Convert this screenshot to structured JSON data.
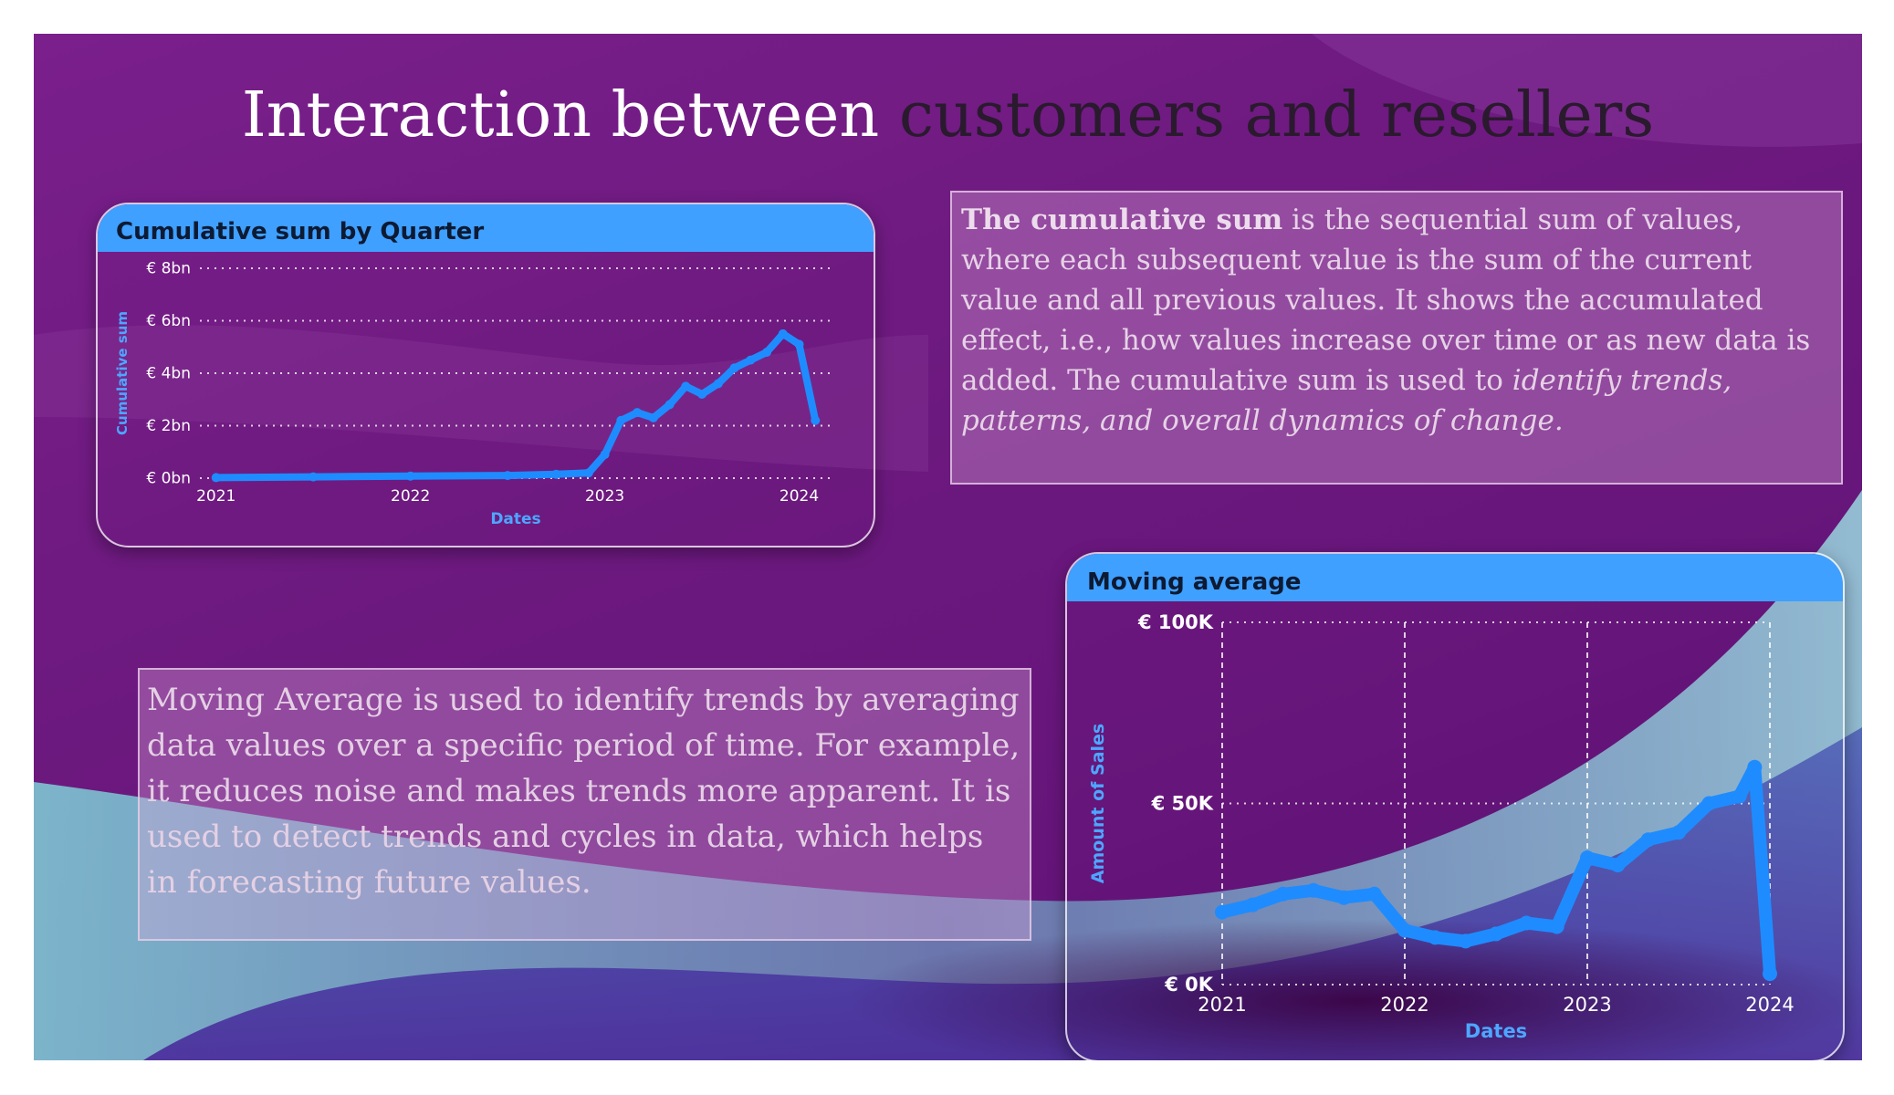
{
  "title": {
    "part1": "Interaction between",
    "part2": "customers and resellers"
  },
  "colors": {
    "background": "#6e1a80",
    "header": "#3fa0ff",
    "series": "#1e8cff",
    "title_dark": "#2a1a2e",
    "axis_title": "#4da6ff"
  },
  "cumulative_text": {
    "bold": "The cumulative sum",
    "body": "is the sequential sum of values, where each subsequent value is the sum of the current value and all previous values. It shows the accumulated effect, i.e., how values increase over time or as new data is added. The cumulative sum is used to",
    "italic": "identify trends, patterns, and overall dynamics of change."
  },
  "moving_text": "Moving Average is used to identify trends by averaging data values over a specific period of time. For example, it reduces noise and makes trends more apparent. It is used to detect trends and cycles in data, which helps in forecasting future values.",
  "chart_data": [
    {
      "type": "line",
      "title": "Cumulative sum by Quarter",
      "xlabel": "Dates",
      "ylabel": "Cumulative sum",
      "xlim": [
        "2020-12",
        "2024-03"
      ],
      "ylim": [
        0,
        8
      ],
      "x_ticks": [
        "2021",
        "2022",
        "2023",
        "2024"
      ],
      "y_ticks": [
        "€ 0bn",
        "€ 2bn",
        "€ 4bn",
        "€ 6bn",
        "€ 8bn"
      ],
      "y_tick_values": [
        0,
        2,
        4,
        6,
        8
      ],
      "grid": "horizontal dotted",
      "series": [
        {
          "x": [
            "2021-01",
            "2021-07",
            "2022-01",
            "2022-07",
            "2022-10",
            "2022-12",
            "2023-01",
            "2023-02",
            "2023-03",
            "2023-04",
            "2023-05",
            "2023-06",
            "2023-07",
            "2023-08",
            "2023-09",
            "2023-10",
            "2023-11",
            "2023-12",
            "2024-01",
            "2024-02"
          ],
          "values": [
            0.02,
            0.05,
            0.08,
            0.1,
            0.15,
            0.2,
            0.9,
            2.2,
            2.5,
            2.3,
            2.8,
            3.5,
            3.2,
            3.6,
            4.2,
            4.5,
            4.8,
            5.5,
            5.1,
            2.2
          ]
        }
      ]
    },
    {
      "type": "line",
      "title": "Moving average",
      "xlabel": "Dates",
      "ylabel": "Amount of Sales",
      "xlim": [
        "2021-01",
        "2024-01"
      ],
      "ylim": [
        0,
        100
      ],
      "x_ticks": [
        "2021",
        "2022",
        "2023",
        "2024"
      ],
      "y_ticks": [
        "€ 0K",
        "€ 50K",
        "€ 100K"
      ],
      "y_tick_values": [
        0,
        50,
        100
      ],
      "grid": "horizontal and vertical dashed",
      "series": [
        {
          "x": [
            "2021-01",
            "2021-03",
            "2021-05",
            "2021-07",
            "2021-09",
            "2021-11",
            "2022-01",
            "2022-03",
            "2022-05",
            "2022-07",
            "2022-09",
            "2022-11",
            "2023-01",
            "2023-03",
            "2023-05",
            "2023-07",
            "2023-09",
            "2023-11",
            "2023-12",
            "2024-01"
          ],
          "values": [
            20,
            22,
            25,
            26,
            24,
            25,
            15,
            13,
            12,
            14,
            17,
            16,
            35,
            33,
            40,
            42,
            50,
            52,
            60,
            3
          ]
        }
      ]
    }
  ]
}
